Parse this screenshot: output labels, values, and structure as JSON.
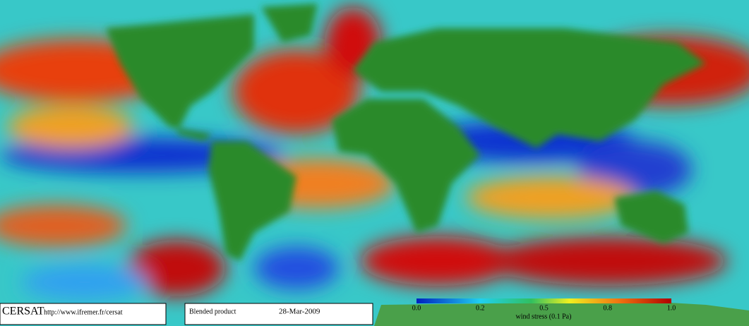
{
  "header": {
    "logo": "CERSAT",
    "url": "http://www.ifremer.fr/cersat",
    "product": "Blended product",
    "date": "28-Mar-2009"
  },
  "colorbar": {
    "ticks": [
      "0.0",
      "0.2",
      "0.5",
      "0.8",
      "1.0"
    ],
    "label": "wind stress (0.1 Pa)"
  }
}
